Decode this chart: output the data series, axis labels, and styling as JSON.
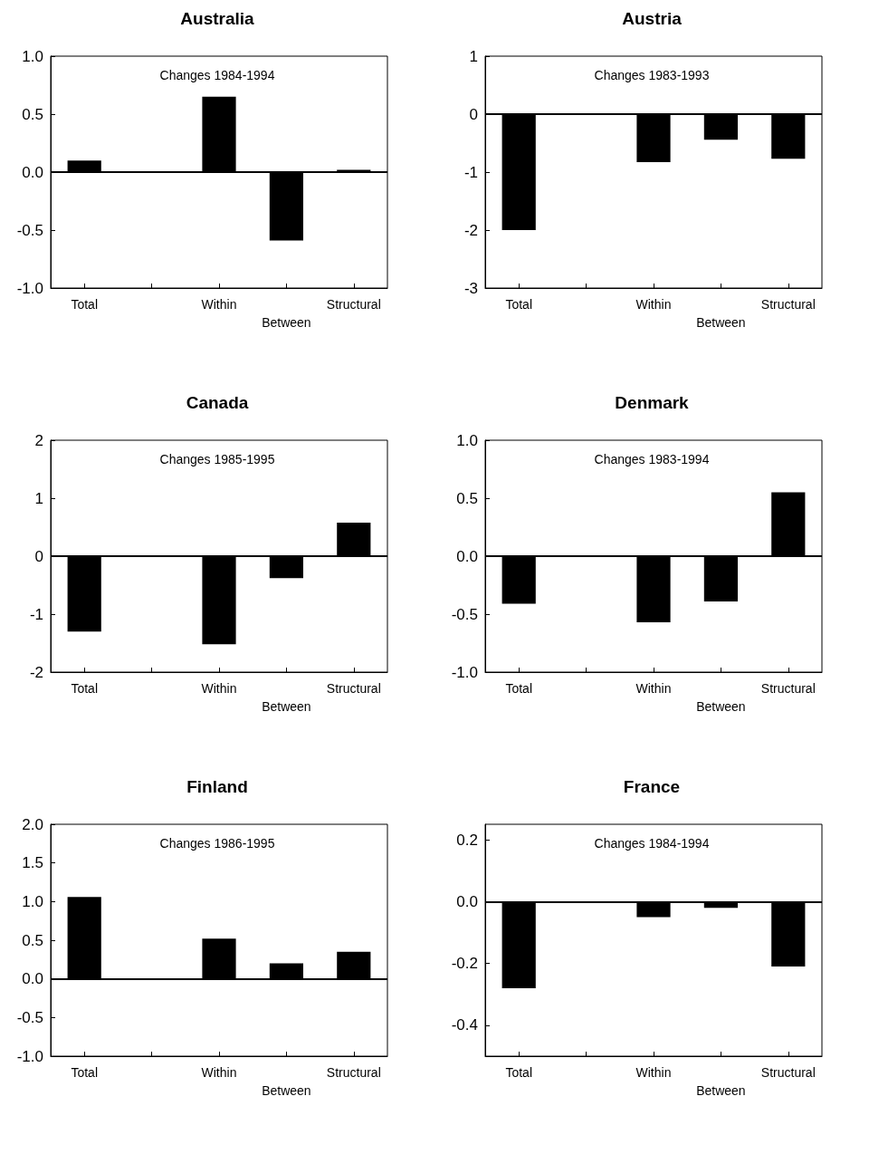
{
  "chart_data": [
    {
      "type": "bar",
      "title": "Australia",
      "annotations": [
        "Changes 1984-1994"
      ],
      "categories": [
        "Total",
        null,
        "Within",
        "Between",
        "Structural"
      ],
      "values": [
        0.1,
        null,
        0.65,
        -0.59,
        0.02
      ],
      "color": "#000000",
      "ylim": [
        -1.0,
        1.0
      ],
      "yticks": [
        {
          "value": -1,
          "label": "-1.0"
        },
        {
          "value": -0.5,
          "label": "-0.5"
        },
        {
          "value": 0,
          "label": "0.0"
        },
        {
          "value": 0.5,
          "label": "0.5"
        },
        {
          "value": 1,
          "label": "1.0"
        }
      ],
      "ref_lines": [
        {
          "axis": "y",
          "value": 0,
          "color": "#000000"
        }
      ],
      "grid": false
    },
    {
      "type": "bar",
      "title": "Austria",
      "annotations": [
        "Changes 1983-1993"
      ],
      "categories": [
        "Total",
        null,
        "Within",
        "Between",
        "Structural"
      ],
      "values": [
        -2.0,
        null,
        -0.83,
        -0.44,
        -0.77
      ],
      "color": "#000000",
      "ylim": [
        -3,
        1
      ],
      "yticks": [
        -3,
        -2,
        -1,
        0,
        1
      ],
      "ref_lines": [
        {
          "axis": "y",
          "value": 0,
          "color": "#000000"
        }
      ],
      "grid": false
    },
    {
      "type": "bar",
      "title": "Canada",
      "annotations": [
        "Changes 1985-1995"
      ],
      "categories": [
        "Total",
        null,
        "Within",
        "Between",
        "Structural"
      ],
      "values": [
        -1.3,
        null,
        -1.52,
        -0.38,
        0.58
      ],
      "color": "#000000",
      "ylim": [
        -2,
        2
      ],
      "yticks": [
        -2,
        -1,
        0,
        1,
        2
      ],
      "ref_lines": [
        {
          "axis": "y",
          "value": 0,
          "color": "#000000"
        }
      ],
      "grid": false
    },
    {
      "type": "bar",
      "title": "Denmark",
      "annotations": [
        "Changes 1983-1994"
      ],
      "categories": [
        "Total",
        null,
        "Within",
        "Between",
        "Structural"
      ],
      "values": [
        -0.41,
        null,
        -0.57,
        -0.39,
        0.55
      ],
      "color": "#000000",
      "ylim": [
        -1.0,
        1.0
      ],
      "yticks": [
        {
          "value": -1,
          "label": "-1.0"
        },
        {
          "value": -0.5,
          "label": "-0.5"
        },
        {
          "value": 0,
          "label": "0.0"
        },
        {
          "value": 0.5,
          "label": "0.5"
        },
        {
          "value": 1,
          "label": "1.0"
        }
      ],
      "ref_lines": [
        {
          "axis": "y",
          "value": 0,
          "color": "#000000"
        }
      ],
      "grid": false
    },
    {
      "type": "bar",
      "title": "Finland",
      "annotations": [
        "Changes 1986-1995"
      ],
      "categories": [
        "Total",
        null,
        "Within",
        "Between",
        "Structural"
      ],
      "values": [
        1.06,
        null,
        0.52,
        0.2,
        0.35
      ],
      "color": "#000000",
      "ylim": [
        -1.0,
        2.0
      ],
      "yticks": [
        {
          "value": -1,
          "label": "-1.0"
        },
        {
          "value": -0.5,
          "label": "-0.5"
        },
        {
          "value": 0,
          "label": "0.0"
        },
        {
          "value": 0.5,
          "label": "0.5"
        },
        {
          "value": 1,
          "label": "1.0"
        },
        {
          "value": 1.5,
          "label": "1.5"
        },
        {
          "value": 2,
          "label": "2.0"
        }
      ],
      "ref_lines": [
        {
          "axis": "y",
          "value": 0,
          "color": "#000000"
        }
      ],
      "grid": false
    },
    {
      "type": "bar",
      "title": "France",
      "annotations": [
        "Changes 1984-1994"
      ],
      "categories": [
        "Total",
        null,
        "Within",
        "Between",
        "Structural"
      ],
      "values": [
        -0.28,
        null,
        -0.05,
        -0.02,
        -0.21
      ],
      "color": "#000000",
      "ylim": [
        -0.5,
        0.25
      ],
      "yticks": [
        -0.4,
        -0.2,
        {
          "value": 0,
          "label": "0.0"
        },
        0.2
      ],
      "ref_lines": [
        {
          "axis": "y",
          "value": 0,
          "color": "#000000"
        }
      ],
      "grid": false
    }
  ]
}
